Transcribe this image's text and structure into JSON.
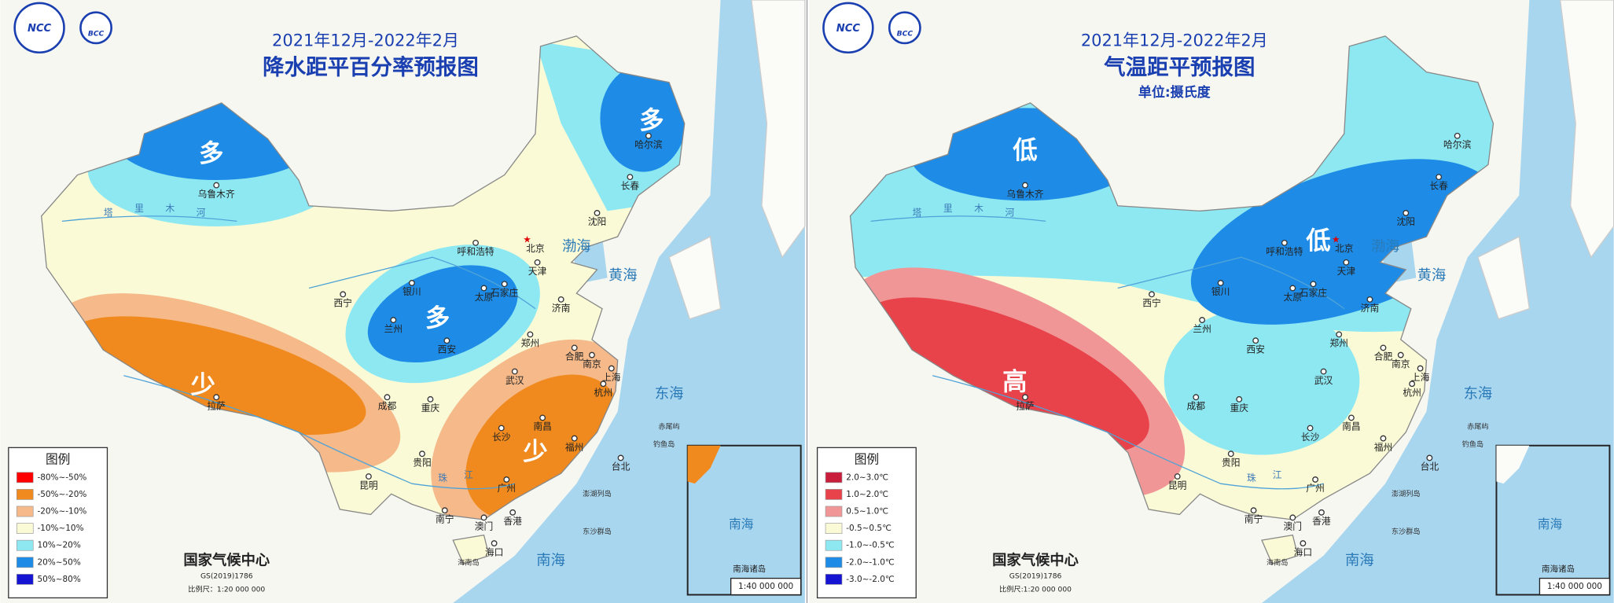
{
  "panels": [
    {
      "title_date": "2021年12月-2022年2月",
      "title": "降水距平百分率预报图",
      "logos": [
        "NCC",
        "BCC"
      ],
      "region_labels": [
        "多",
        "多",
        "多",
        "少",
        "少"
      ],
      "legend": {
        "title": "图例",
        "items": [
          {
            "label": "-80%~-50%",
            "color": "#ff0000"
          },
          {
            "label": "-50%~-20%",
            "color": "#f08a1e"
          },
          {
            "label": "-20%~-10%",
            "color": "#f5b98a"
          },
          {
            "label": "-10%~10%",
            "color": "#fafad6"
          },
          {
            "label": "10%~20%",
            "color": "#8ee8f2"
          },
          {
            "label": "20%~50%",
            "color": "#1e8ce6"
          },
          {
            "label": "50%~80%",
            "color": "#1414d2"
          }
        ]
      },
      "footer": {
        "org": "国家气候中心",
        "code": "GS(2019)1786",
        "scale": "比例尺：1:20 000 000"
      },
      "inset": {
        "sea": "南海",
        "label": "南海诸岛",
        "scale": "1:40 000 000"
      }
    },
    {
      "title_date": "2021年12月-2022年2月",
      "title": "气温距平预报图",
      "subtitle": "单位:摄氏度",
      "logos": [
        "NCC",
        "BCC"
      ],
      "region_labels": [
        "低",
        "低",
        "高"
      ],
      "legend": {
        "title": "图例",
        "items": [
          {
            "label": "2.0~3.0℃",
            "color": "#c81e3c"
          },
          {
            "label": "1.0~2.0℃",
            "color": "#e8424a"
          },
          {
            "label": "0.5~1.0℃",
            "color": "#f09696"
          },
          {
            "label": "-0.5~0.5℃",
            "color": "#fafad6"
          },
          {
            "label": "-1.0~-0.5℃",
            "color": "#8ee8f2"
          },
          {
            "label": "-2.0~-1.0℃",
            "color": "#1e8ce6"
          },
          {
            "label": "-3.0~-2.0℃",
            "color": "#1414d2"
          }
        ]
      },
      "footer": {
        "org": "国家气候中心",
        "code": "GS(2019)1786",
        "scale": "比例尺:1:20 000 000"
      },
      "inset": {
        "sea": "南海",
        "label": "南海诸岛",
        "scale": "1:40 000 000"
      }
    }
  ],
  "cities": [
    "乌鲁木齐",
    "哈尔滨",
    "长春",
    "沈阳",
    "北京",
    "天津",
    "呼和浩特",
    "石家庄",
    "太原",
    "济南",
    "银川",
    "西宁",
    "兰州",
    "西安",
    "郑州",
    "合肥",
    "南京",
    "上海",
    "杭州",
    "武汉",
    "成都",
    "重庆",
    "拉萨",
    "长沙",
    "南昌",
    "福州",
    "台北",
    "贵阳",
    "昆明",
    "南宁",
    "广州",
    "香港",
    "澳门",
    "海口"
  ],
  "seas": [
    "渤海",
    "黄海",
    "东海",
    "南海"
  ],
  "islands": [
    "钓鱼岛",
    "赤尾屿",
    "澎湖列岛",
    "东沙群岛",
    "海南岛"
  ],
  "rivers": [
    "塔",
    "里",
    "木",
    "河",
    "珠",
    "江"
  ]
}
